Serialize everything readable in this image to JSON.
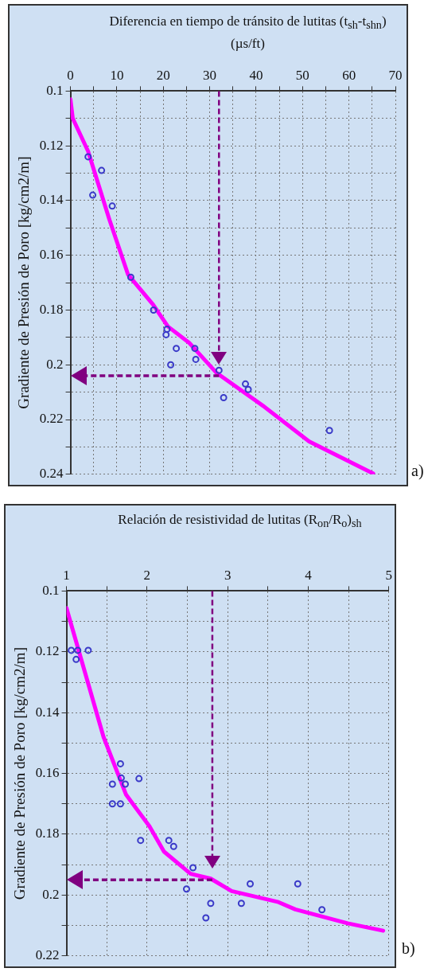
{
  "chart_data": [
    {
      "type": "scatter",
      "xlabel": "Diferencia en tiempo de tránsito de lutitas (t$_{sh}$-t$_{shn}$) (µs/ft)",
      "ylabel": "Gradiente de Presión de Poro [kg/cm2/m]",
      "xlim": [
        0,
        70
      ],
      "xticks": [
        0,
        {
          "value": 5,
          "label": null
        },
        10,
        {
          "value": 15,
          "label": null
        },
        20,
        {
          "value": 25,
          "label": null
        },
        30,
        {
          "value": 35,
          "label": null
        },
        40,
        {
          "value": 45,
          "label": null
        },
        50,
        {
          "value": 55,
          "label": null
        },
        60,
        {
          "value": 65,
          "label": null
        },
        70
      ],
      "ylim": [
        0.24,
        0.1
      ],
      "yticks": [
        0.1,
        {
          "value": 0.11,
          "label": null
        },
        0.12,
        {
          "value": 0.13,
          "label": null
        },
        0.14,
        {
          "value": 0.15,
          "label": null
        },
        0.16,
        {
          "value": 0.17,
          "label": null
        },
        0.18,
        {
          "value": 0.19,
          "label": null
        },
        0.2,
        {
          "value": 0.21,
          "label": null
        },
        0.22,
        {
          "value": 0.23,
          "label": null
        },
        0.24
      ],
      "grid": true,
      "legend": false,
      "marker": "circle",
      "series": [
        {
          "color": "#3a3ac8",
          "x": [
            3.8,
            6.7,
            4.8,
            9,
            13,
            17.9,
            20.6,
            20.8,
            22.8,
            21.6,
            26.8,
            27,
            32,
            33,
            37.7,
            38.3,
            55.8
          ],
          "values": [
            0.124,
            0.129,
            0.138,
            0.142,
            0.168,
            0.18,
            0.189,
            0.187,
            0.194,
            0.2,
            0.194,
            0.198,
            0.202,
            0.212,
            0.207,
            0.209,
            0.224
          ]
        },
        {
          "type": "line",
          "color": "#ff00ff",
          "marker": "none",
          "x": [
            0,
            0.5,
            3.8,
            8.4,
            12.4,
            17.8,
            21,
            25.6,
            31.5,
            41.5,
            51.4,
            65.2
          ],
          "values": [
            0.103,
            0.11,
            0.122,
            0.147,
            0.167,
            0.178,
            0.186,
            0.192,
            0.203,
            0.215,
            0.228,
            0.2397
          ]
        }
      ],
      "ref_lines": [
        {
          "axis": "x",
          "value": 32,
          "color": "#800080",
          "line_style": "dashed"
        },
        {
          "axis": "y",
          "value": 0.204,
          "color": "#800080",
          "line_style": "dashed"
        }
      ],
      "annotations": [
        "a)"
      ]
    },
    {
      "type": "scatter",
      "xlabel": "Relación de resistividad de lutitas (R$_{on}$/R$_{o}$)$_{sh}$",
      "ylabel": "Gradiente de Presión de Poro [kg/cm2/m]",
      "xlim": [
        1,
        5
      ],
      "xticks": [
        1,
        {
          "value": 1.5,
          "label": null
        },
        2,
        {
          "value": 2.5,
          "label": null
        },
        3,
        {
          "value": 3.5,
          "label": null
        },
        4,
        {
          "value": 4.5,
          "label": null
        },
        5
      ],
      "ylim": [
        0.22,
        0.1
      ],
      "yticks": [
        0.1,
        {
          "value": 0.11,
          "label": null
        },
        0.12,
        {
          "value": 0.13,
          "label": null
        },
        0.14,
        {
          "value": 0.15,
          "label": null
        },
        0.16,
        {
          "value": 0.17,
          "label": null
        },
        0.18,
        {
          "value": 0.19,
          "label": null
        },
        0.2,
        {
          "value": 0.21,
          "label": null
        },
        0.22
      ],
      "grid": true,
      "legend": false,
      "marker": "circle",
      "series": [
        {
          "color": "#3a3ac8",
          "x": [
            1.06,
            1.14,
            1.27,
            1.12,
            1.67,
            1.57,
            1.68,
            1.73,
            1.9,
            1.57,
            1.67,
            1.92,
            2.27,
            2.33,
            2.57,
            2.49,
            2.79,
            2.73,
            3.17,
            3.28,
            3.87,
            4.17
          ],
          "values": [
            0.1195,
            0.1195,
            0.1195,
            0.1225,
            0.1568,
            0.1635,
            0.1615,
            0.1635,
            0.1617,
            0.17,
            0.17,
            0.182,
            0.182,
            0.184,
            0.191,
            0.198,
            0.2027,
            0.2075,
            0.2027,
            0.1963,
            0.1963,
            0.2048
          ]
        },
        {
          "type": "line",
          "color": "#ff00ff",
          "marker": "none",
          "x": [
            1,
            1.46,
            1.74,
            2.03,
            2.21,
            2.54,
            2.79,
            3.05,
            3.63,
            3.84,
            4.49,
            4.93
          ],
          "values": [
            0.1056,
            0.148,
            0.167,
            0.1774,
            0.1857,
            0.193,
            0.1946,
            0.1987,
            0.2023,
            0.2047,
            0.2093,
            0.2117
          ]
        }
      ],
      "ref_lines": [
        {
          "axis": "x",
          "value": 2.81,
          "color": "#800080",
          "line_style": "dashed"
        },
        {
          "axis": "y",
          "value": 0.195,
          "color": "#800080",
          "line_style": "dashed"
        }
      ],
      "annotations": [
        "b)"
      ]
    }
  ]
}
